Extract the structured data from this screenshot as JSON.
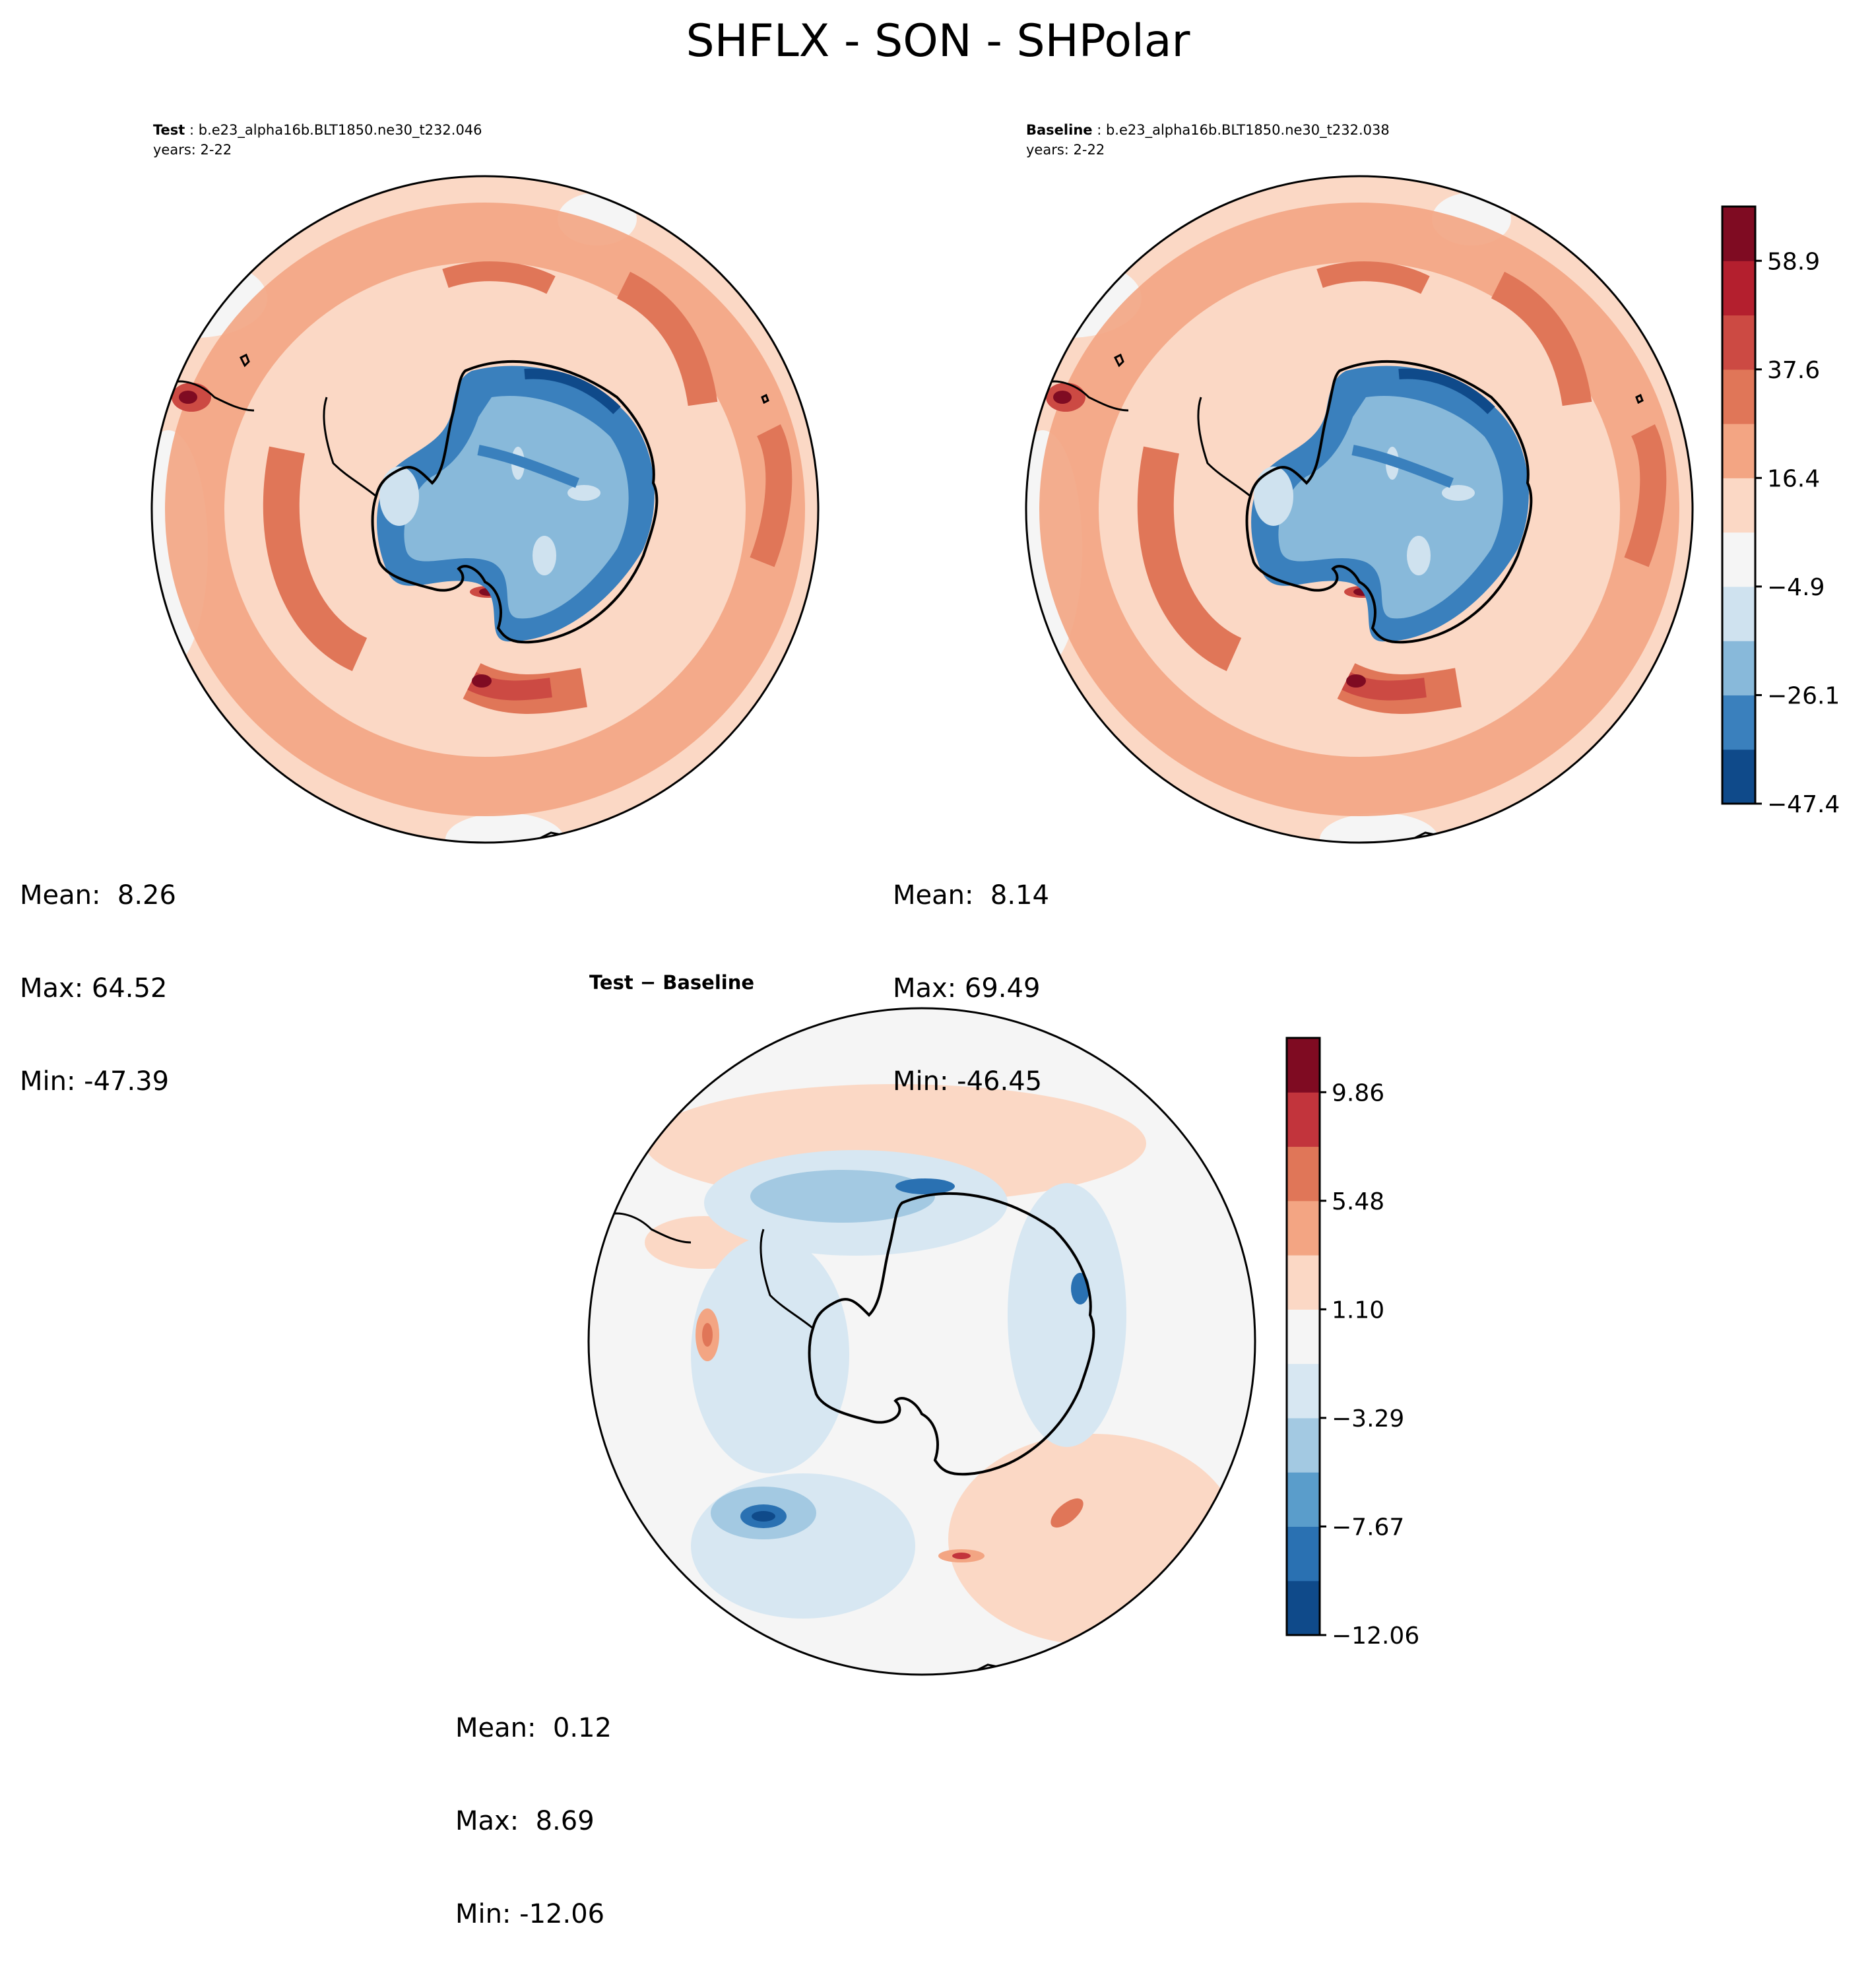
{
  "title": "SHFLX - SON - SHPolar",
  "panels": {
    "test": {
      "label": "Test",
      "case": " : b.e23_alpha16b.BLT1850.ne30_t232.046",
      "years": "years: 2-22",
      "mean": "Mean:  8.26",
      "max": "Max: 64.52",
      "min": "Min: -47.39"
    },
    "baseline": {
      "label": "Baseline",
      "case": " : b.e23_alpha16b.BLT1850.ne30_t232.038",
      "years": "years: 2-22",
      "mean": "Mean:  8.14",
      "max": "Max: 69.49",
      "min": "Min: -46.45"
    },
    "diff": {
      "title": "Test − Baseline",
      "mean": "Mean:  0.12",
      "max": "Max:  8.69",
      "min": "Min: -12.06"
    }
  },
  "colorbars": {
    "main": {
      "ticks": [
        "58.9",
        "37.6",
        "16.4",
        "−4.9",
        "−26.1",
        "−47.4"
      ],
      "colors": [
        "#0f4a8a",
        "#3a80bd",
        "#88b9da",
        "#cfe2ef",
        "#f5f5f5",
        "#fbd8c5",
        "#f3a583",
        "#e07658",
        "#cc4a43",
        "#b41f2e",
        "#7f0b22"
      ]
    },
    "diff": {
      "ticks": [
        "9.86",
        "5.48",
        "1.10",
        "−3.29",
        "−7.67",
        "−12.06"
      ],
      "colors": [
        "#0f4a8a",
        "#2a71b2",
        "#5a9dcb",
        "#a3c9e2",
        "#d7e7f2",
        "#f5f5f5",
        "#fbd8c5",
        "#f3a583",
        "#e07658",
        "#c2343c",
        "#7f0b22"
      ]
    }
  }
}
